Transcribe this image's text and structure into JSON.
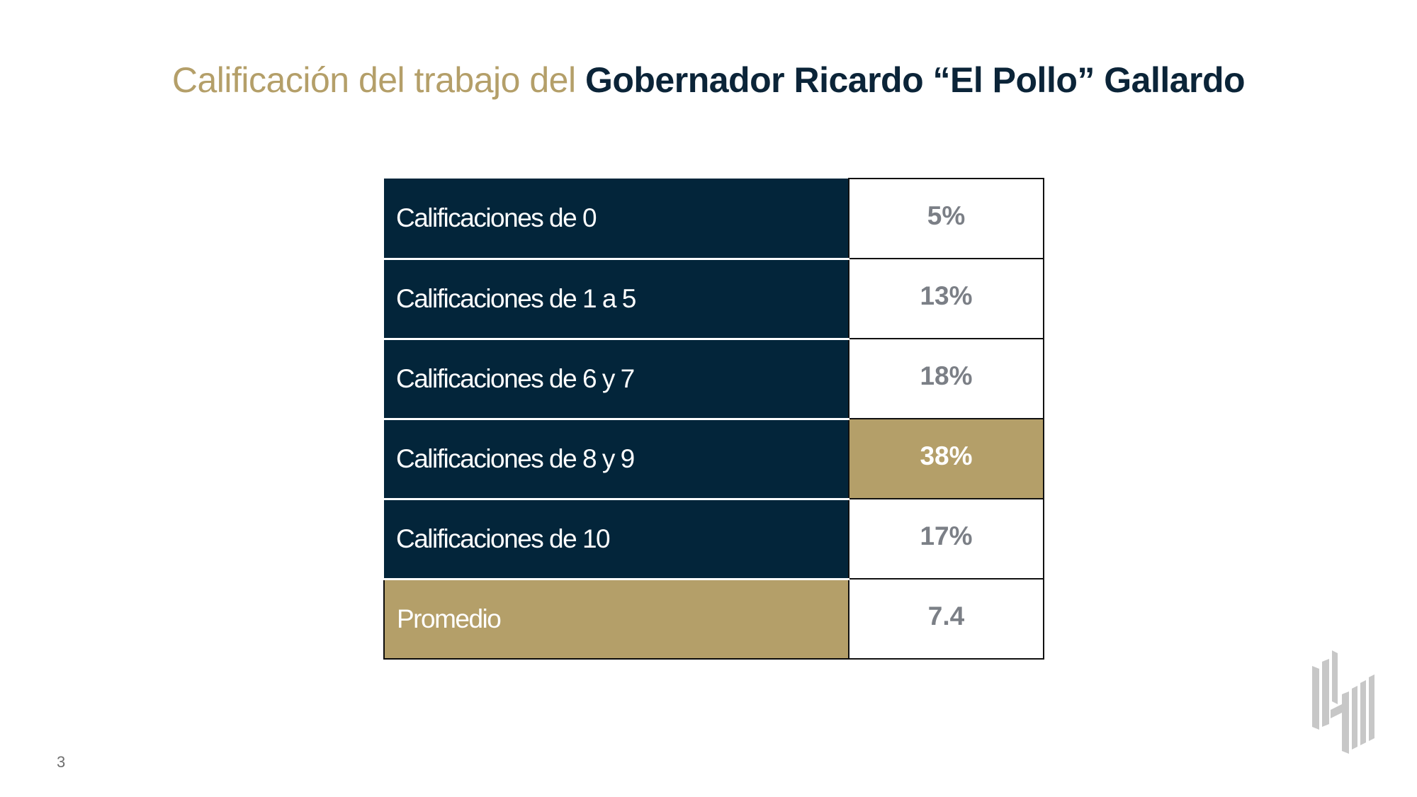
{
  "slide": {
    "title_light": "Calificación del trabajo del ",
    "title_bold": "Gobernador Ricardo “El Pollo” Gallardo",
    "page_number": "3"
  },
  "table": {
    "rows": [
      {
        "label": "Calificaciones de 0",
        "value": "5%"
      },
      {
        "label": "Calificaciones de 1 a 5",
        "value": "13%"
      },
      {
        "label": "Calificaciones de 6 y 7",
        "value": "18%"
      },
      {
        "label": "Calificaciones de 8 y 9",
        "value": "38%"
      },
      {
        "label": "Calificaciones de 10",
        "value": "17%"
      },
      {
        "label": "Promedio",
        "value": "7.4"
      }
    ]
  },
  "colors": {
    "navy": "#03253a",
    "gold": "#b49f69",
    "value_text": "#7b7f86",
    "logo": "#c7c7c7"
  },
  "logo": {
    "icon": "pollster-logo-icon"
  }
}
